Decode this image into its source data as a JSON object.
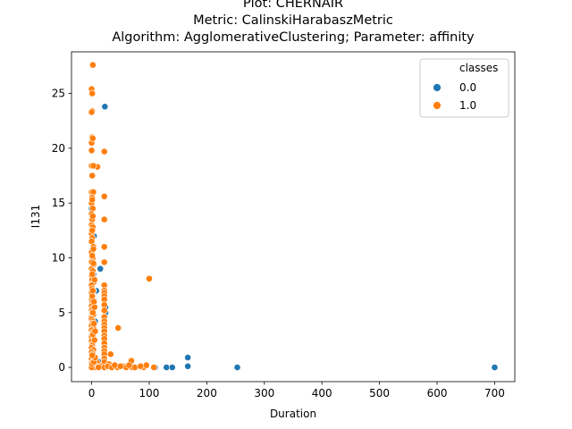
{
  "chart_data": {
    "type": "scatter",
    "title_lines": [
      "Plot: CHERNAIR",
      "Metric: CalinskiHarabaszMetric",
      "Algorithm: AgglomerativeClustering; Parameter: affinity"
    ],
    "xlabel": "Duration",
    "ylabel": "I131",
    "xlim": [
      -35,
      735
    ],
    "ylim": [
      -1.3,
      28.8
    ],
    "xticks": [
      0,
      100,
      200,
      300,
      400,
      500,
      600,
      700
    ],
    "yticks": [
      0,
      5,
      10,
      15,
      20,
      25
    ],
    "grid": false,
    "legend": {
      "title": "classes",
      "placement": "top-right",
      "entries": [
        "0.0",
        "1.0"
      ]
    },
    "colors": {
      "0.0": "#1f77b4",
      "1.0": "#ff7f0e"
    },
    "series": [
      {
        "name": "0.0",
        "points": [
          [
            23,
            23.8
          ],
          [
            15,
            9.0
          ],
          [
            8,
            7.0
          ],
          [
            24,
            5.5
          ],
          [
            24,
            4.9
          ],
          [
            24,
            5.0
          ],
          [
            167,
            0.9
          ],
          [
            167,
            0.1
          ],
          [
            130,
            0.0
          ],
          [
            140,
            0.0
          ],
          [
            253,
            0.0
          ],
          [
            700,
            0.0
          ],
          [
            0,
            3.0
          ],
          [
            2,
            1.2
          ],
          [
            5,
            0.3
          ],
          [
            12,
            0.5
          ],
          [
            25,
            0.2
          ],
          [
            40,
            0.1
          ],
          [
            70,
            0.1
          ],
          [
            90,
            0.0
          ],
          [
            110,
            0.0
          ],
          [
            2,
            6.0
          ],
          [
            3,
            8.5
          ],
          [
            1,
            10.5
          ],
          [
            4,
            12.0
          ],
          [
            0,
            14.5
          ],
          [
            2,
            2.2
          ],
          [
            6,
            4.2
          ]
        ]
      },
      {
        "name": "1.0",
        "points": [
          [
            2,
            27.6
          ],
          [
            0,
            25.4
          ],
          [
            1,
            25.0
          ],
          [
            1,
            23.4
          ],
          [
            0,
            23.3
          ],
          [
            1,
            21.0
          ],
          [
            0,
            20.5
          ],
          [
            0,
            19.8
          ],
          [
            22,
            19.7
          ],
          [
            0,
            18.4
          ],
          [
            10,
            18.3
          ],
          [
            1,
            17.5
          ],
          [
            0,
            16.0
          ],
          [
            3,
            16.0
          ],
          [
            1,
            15.5
          ],
          [
            22,
            15.6
          ],
          [
            0,
            15.0
          ],
          [
            2,
            14.5
          ],
          [
            0,
            14.0
          ],
          [
            1,
            13.5
          ],
          [
            22,
            13.5
          ],
          [
            0,
            13.0
          ],
          [
            2,
            12.8
          ],
          [
            0,
            12.2
          ],
          [
            1,
            11.8
          ],
          [
            0,
            11.5
          ],
          [
            3,
            11.0
          ],
          [
            22,
            11.0
          ],
          [
            0,
            10.5
          ],
          [
            2,
            10.0
          ],
          [
            0,
            9.6
          ],
          [
            4,
            9.4
          ],
          [
            22,
            9.6
          ],
          [
            0,
            9.0
          ],
          [
            2,
            8.8
          ],
          [
            0,
            8.4
          ],
          [
            1,
            8.0
          ],
          [
            4,
            7.8
          ],
          [
            100,
            8.1
          ],
          [
            0,
            7.5
          ],
          [
            22,
            7.5
          ],
          [
            1,
            7.2
          ],
          [
            3,
            7.0
          ],
          [
            22,
            7.0
          ],
          [
            0,
            6.8
          ],
          [
            22,
            6.8
          ],
          [
            2,
            6.5
          ],
          [
            22,
            6.5
          ],
          [
            0,
            6.2
          ],
          [
            22,
            6.2
          ],
          [
            1,
            6.0
          ],
          [
            3,
            5.8
          ],
          [
            0,
            5.6
          ],
          [
            22,
            5.7
          ],
          [
            2,
            5.4
          ],
          [
            0,
            5.2
          ],
          [
            22,
            5.2
          ],
          [
            1,
            5.0
          ],
          [
            0,
            4.6
          ],
          [
            3,
            4.8
          ],
          [
            22,
            4.6
          ],
          [
            0,
            4.4
          ],
          [
            2,
            4.2
          ],
          [
            22,
            4.2
          ],
          [
            1,
            4.0
          ],
          [
            22,
            3.9
          ],
          [
            0,
            3.8
          ],
          [
            3,
            3.6
          ],
          [
            22,
            3.6
          ],
          [
            46,
            3.6
          ],
          [
            0,
            3.4
          ],
          [
            2,
            3.2
          ],
          [
            22,
            3.3
          ],
          [
            1,
            3.0
          ],
          [
            0,
            2.8
          ],
          [
            22,
            2.9
          ],
          [
            3,
            2.6
          ],
          [
            22,
            2.6
          ],
          [
            0,
            2.4
          ],
          [
            2,
            2.2
          ],
          [
            22,
            2.2
          ],
          [
            1,
            2.0
          ],
          [
            0,
            1.8
          ],
          [
            22,
            1.8
          ],
          [
            3,
            1.6
          ],
          [
            22,
            1.5
          ],
          [
            0,
            1.4
          ],
          [
            22,
            1.2
          ],
          [
            2,
            1.2
          ],
          [
            33,
            1.2
          ],
          [
            1,
            1.0
          ],
          [
            0,
            0.8
          ],
          [
            22,
            0.8
          ],
          [
            3,
            0.6
          ],
          [
            22,
            0.5
          ],
          [
            0,
            0.4
          ],
          [
            10,
            0.4
          ],
          [
            30,
            0.3
          ],
          [
            69,
            0.6
          ],
          [
            2,
            0.2
          ],
          [
            0,
            0.1
          ],
          [
            8,
            0.1
          ],
          [
            15,
            0.1
          ],
          [
            22,
            0.0
          ],
          [
            28,
            0.1
          ],
          [
            35,
            0.0
          ],
          [
            45,
            0.0
          ],
          [
            55,
            0.1
          ],
          [
            60,
            0.0
          ],
          [
            70,
            0.0
          ],
          [
            75,
            0.0
          ],
          [
            90,
            0.0
          ],
          [
            95,
            0.2
          ],
          [
            108,
            0.0
          ],
          [
            5,
            0.0
          ],
          [
            12,
            0.0
          ],
          [
            0,
            0.0
          ],
          [
            40,
            0.2
          ],
          [
            50,
            0.1
          ],
          [
            65,
            0.2
          ],
          [
            85,
            0.1
          ],
          [
            1,
            0.3
          ],
          [
            4,
            0.5
          ],
          [
            6,
            0.9
          ],
          [
            1,
            1.1
          ],
          [
            5,
            2.5
          ],
          [
            2,
            3.0
          ],
          [
            6,
            3.3
          ],
          [
            4,
            4.0
          ],
          [
            2,
            5.0
          ],
          [
            5,
            5.5
          ],
          [
            1,
            6.5
          ],
          [
            4,
            6.0
          ],
          [
            2,
            7.0
          ],
          [
            5,
            8.0
          ],
          [
            1,
            8.5
          ],
          [
            3,
            9.5
          ],
          [
            1,
            10.2
          ],
          [
            3,
            10.8
          ],
          [
            1,
            12.5
          ],
          [
            2,
            13.8
          ],
          [
            1,
            15.3
          ],
          [
            2,
            20.9
          ],
          [
            3,
            18.4
          ]
        ]
      }
    ]
  }
}
